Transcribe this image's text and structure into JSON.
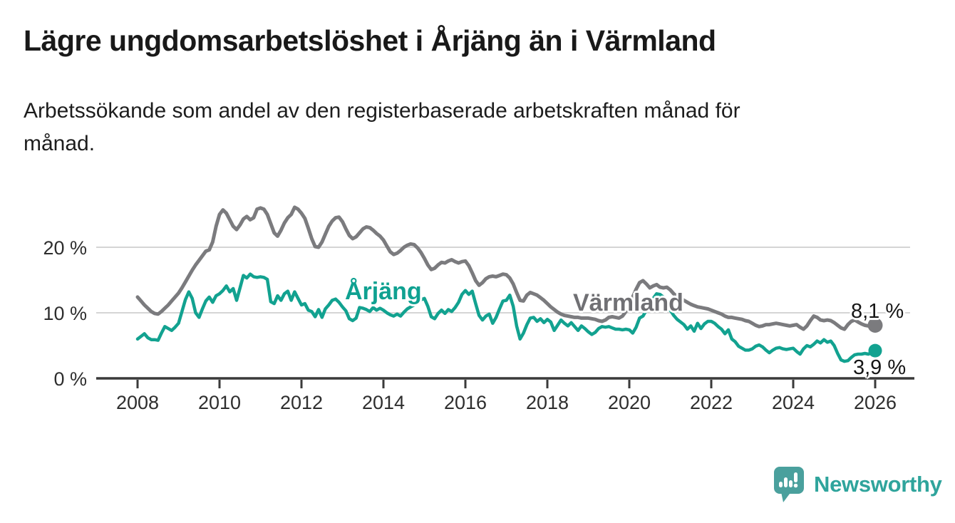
{
  "header": {
    "title": "Lägre ungdomsarbetslöshet i Årjäng än i Värmland",
    "subtitle_line1": "Arbetssökande som andel av den registerbaserade arbetskraften månad för",
    "subtitle_line2": "månad."
  },
  "colors": {
    "gray_line": "#7b7b7e",
    "teal_line": "#12a290",
    "grid": "#d5d5d5",
    "axis": "#3a3a3a",
    "tick_text": "#2e2e2e",
    "title_text": "#191919",
    "brand_teal": "#2fa49c",
    "icon_teal": "#4aa09d"
  },
  "chart_data": {
    "type": "line",
    "title": "Lägre ungdomsarbetslöshet i Årjäng än i Värmland",
    "subtitle": "Arbetssökande som andel av den registerbaserade arbetskraften månad för månad.",
    "unit": "%",
    "frequency": "monthly",
    "x_start": "2008-01",
    "x_end": "2026-01",
    "ylim": [
      0,
      27.5
    ],
    "grid": true,
    "y_gridlines": [
      10,
      20
    ],
    "y_ticks": [
      {
        "value": 0,
        "label": "0 %"
      },
      {
        "value": 10,
        "label": "10 %"
      },
      {
        "value": 20,
        "label": "20 %"
      }
    ],
    "x_ticks": [
      {
        "year": 2008,
        "label": "2008"
      },
      {
        "year": 2010,
        "label": "2010"
      },
      {
        "year": 2012,
        "label": "2012"
      },
      {
        "year": 2014,
        "label": "2014"
      },
      {
        "year": 2016,
        "label": "2016"
      },
      {
        "year": 2018,
        "label": "2018"
      },
      {
        "year": 2020,
        "label": "2020"
      },
      {
        "year": 2022,
        "label": "2022"
      },
      {
        "year": 2024,
        "label": "2024"
      },
      {
        "year": 2026,
        "label": "2026"
      }
    ],
    "series": [
      {
        "name": "Värmland",
        "color": "#7b7b7e",
        "end_label": "8,1 %",
        "end_value": 8.1,
        "values": [
          12.4,
          11.8,
          11.2,
          10.7,
          10.2,
          9.9,
          9.8,
          10.2,
          10.7,
          11.2,
          11.8,
          12.4,
          13.0,
          13.8,
          14.7,
          15.6,
          16.5,
          17.3,
          18.0,
          18.7,
          19.4,
          19.6,
          20.8,
          23.2,
          25.0,
          25.7,
          25.2,
          24.2,
          23.2,
          22.7,
          23.4,
          24.3,
          24.7,
          24.2,
          24.5,
          25.8,
          26.0,
          25.8,
          25.0,
          23.6,
          22.2,
          21.7,
          22.6,
          23.7,
          24.5,
          25.0,
          26.1,
          25.8,
          25.2,
          24.4,
          22.9,
          21.3,
          20.1,
          20.0,
          20.8,
          22.0,
          23.2,
          24.0,
          24.5,
          24.6,
          23.9,
          22.8,
          21.8,
          21.3,
          21.6,
          22.2,
          22.8,
          23.1,
          23.0,
          22.6,
          22.1,
          21.7,
          21.1,
          20.2,
          19.3,
          18.9,
          19.1,
          19.5,
          20.0,
          20.3,
          20.5,
          20.4,
          19.9,
          19.2,
          18.3,
          17.3,
          16.6,
          16.8,
          17.3,
          17.7,
          17.6,
          17.9,
          18.1,
          17.8,
          17.6,
          17.8,
          17.9,
          17.2,
          16.1,
          14.9,
          14.2,
          14.6,
          15.2,
          15.5,
          15.6,
          15.5,
          15.7,
          15.9,
          15.8,
          15.3,
          14.4,
          13.1,
          11.9,
          11.8,
          12.7,
          13.1,
          12.9,
          12.7,
          12.3,
          11.9,
          11.4,
          10.9,
          10.5,
          10.1,
          9.8,
          9.6,
          9.5,
          9.4,
          9.3,
          9.3,
          9.2,
          9.2,
          9.2,
          9.1,
          9.0,
          8.8,
          8.7,
          8.9,
          9.3,
          9.4,
          9.3,
          9.2,
          9.5,
          10.2,
          11.2,
          12.4,
          13.6,
          14.6,
          14.9,
          14.4,
          13.8,
          14.1,
          14.3,
          13.9,
          13.8,
          13.9,
          13.5,
          12.9,
          12.5,
          12.2,
          11.9,
          11.6,
          11.3,
          11.1,
          10.9,
          10.8,
          10.7,
          10.6,
          10.4,
          10.2,
          10.0,
          9.8,
          9.5,
          9.3,
          9.3,
          9.2,
          9.1,
          9.0,
          8.8,
          8.7,
          8.4,
          8.1,
          7.9,
          8.0,
          8.2,
          8.2,
          8.3,
          8.4,
          8.3,
          8.2,
          8.1,
          8.0,
          8.1,
          8.2,
          7.8,
          7.5,
          8.0,
          8.8,
          9.5,
          9.3,
          8.9,
          8.8,
          8.9,
          8.8,
          8.5,
          8.1,
          7.7,
          7.5,
          8.2,
          8.7,
          8.9,
          8.6,
          8.3,
          8.1,
          8.0,
          8.0,
          8.1
        ]
      },
      {
        "name": "Årjäng",
        "color": "#12a290",
        "end_label": "3,9 %",
        "end_value": 3.9,
        "values": [
          6.0,
          6.4,
          6.8,
          6.2,
          5.9,
          5.9,
          5.8,
          6.9,
          7.9,
          7.6,
          7.3,
          7.8,
          8.4,
          10.2,
          12.0,
          13.2,
          12.2,
          10.0,
          9.3,
          10.6,
          11.8,
          12.4,
          11.6,
          12.6,
          12.9,
          13.4,
          14.1,
          13.2,
          13.7,
          11.9,
          13.8,
          15.7,
          15.3,
          15.9,
          15.5,
          15.4,
          15.5,
          15.4,
          15.1,
          11.7,
          11.4,
          12.6,
          11.9,
          12.9,
          13.3,
          11.9,
          13.2,
          12.2,
          11.2,
          11.4,
          10.4,
          10.2,
          9.4,
          10.5,
          9.3,
          10.6,
          11.2,
          11.9,
          12.1,
          11.6,
          10.9,
          10.3,
          9.1,
          8.8,
          9.2,
          10.8,
          10.7,
          10.5,
          10.2,
          10.8,
          10.4,
          10.7,
          10.4,
          10.0,
          9.7,
          9.5,
          9.8,
          9.5,
          10.1,
          10.6,
          10.9,
          11.2,
          11.6,
          12.0,
          12.2,
          11.0,
          9.4,
          9.1,
          9.9,
          10.4,
          9.9,
          10.5,
          10.2,
          10.8,
          11.6,
          12.8,
          13.4,
          12.8,
          13.3,
          11.4,
          9.6,
          8.9,
          9.5,
          9.8,
          8.4,
          9.3,
          10.6,
          11.8,
          11.9,
          12.7,
          11.0,
          8.0,
          6.0,
          6.9,
          8.2,
          9.2,
          9.3,
          8.7,
          9.1,
          8.5,
          9.0,
          8.6,
          7.3,
          8.1,
          8.9,
          8.4,
          8.0,
          8.5,
          7.9,
          7.3,
          8.0,
          7.6,
          7.1,
          6.7,
          7.0,
          7.6,
          7.9,
          7.8,
          7.9,
          7.7,
          7.5,
          7.5,
          7.4,
          7.5,
          7.4,
          6.9,
          7.8,
          9.2,
          9.5,
          10.4,
          11.4,
          12.2,
          12.9,
          12.8,
          12.4,
          11.2,
          10.4,
          9.6,
          9.0,
          8.6,
          8.2,
          7.5,
          8.0,
          7.2,
          8.4,
          7.6,
          8.3,
          8.7,
          8.7,
          8.4,
          7.9,
          7.5,
          6.8,
          7.4,
          6.0,
          5.6,
          4.9,
          4.6,
          4.3,
          4.3,
          4.5,
          4.9,
          5.1,
          4.8,
          4.3,
          3.9,
          4.3,
          4.6,
          4.7,
          4.5,
          4.4,
          4.5,
          4.6,
          4.1,
          3.7,
          4.5,
          5.0,
          4.8,
          5.2,
          5.7,
          5.4,
          5.9,
          5.5,
          5.7,
          5.0,
          3.8,
          2.8,
          2.6,
          2.7,
          3.2,
          3.6,
          3.7,
          3.7,
          3.8,
          3.7,
          3.9,
          3.9
        ]
      }
    ]
  },
  "footer": {
    "brand": "Newsworthy"
  }
}
